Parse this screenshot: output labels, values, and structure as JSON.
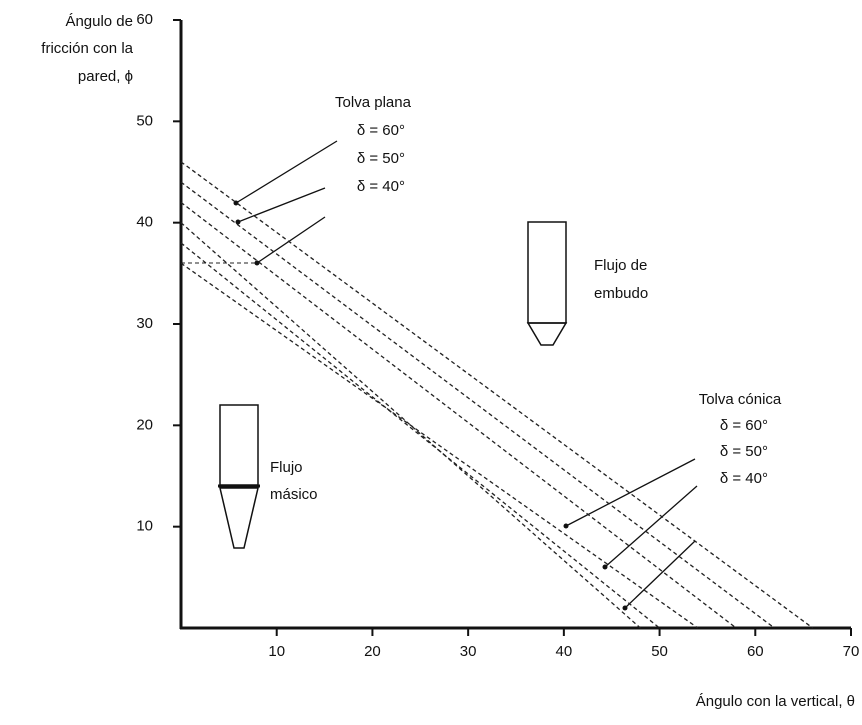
{
  "chart_data": {
    "type": "line",
    "ylabel": [
      "Ángulo de",
      "fricción con la",
      "pared, ϕ"
    ],
    "xlabel": "Ángulo con la vertical, θ",
    "xlim": [
      0,
      70
    ],
    "xticks": [
      10,
      20,
      30,
      40,
      50,
      60,
      70
    ],
    "ylim": [
      0,
      60
    ],
    "yticks": [
      10,
      20,
      30,
      40,
      50,
      60
    ],
    "color": "#222222",
    "dashed": true,
    "series": [
      {
        "x": [
          0,
          66
        ],
        "values": [
          46,
          0
        ]
      },
      {
        "x": [
          0,
          62
        ],
        "values": [
          44,
          0
        ]
      },
      {
        "x": [
          0,
          58
        ],
        "values": [
          42,
          0
        ]
      },
      {
        "x": [
          0,
          48
        ],
        "values": [
          40,
          0
        ]
      },
      {
        "x": [
          0,
          50
        ],
        "values": [
          38,
          0
        ]
      },
      {
        "x": [
          0,
          54
        ],
        "values": [
          36,
          0
        ]
      }
    ],
    "annotations": {
      "plane_title": "Tolva plana",
      "plane": [
        "δ = 60°",
        "δ = 50°",
        "δ = 40°"
      ],
      "conical_title": "Tolva cónica",
      "conical": [
        "δ = 60°",
        "δ = 50°",
        "δ = 40°"
      ],
      "funnel": [
        "Flujo de",
        "embudo"
      ],
      "mass": [
        "Flujo",
        "másico"
      ]
    }
  }
}
